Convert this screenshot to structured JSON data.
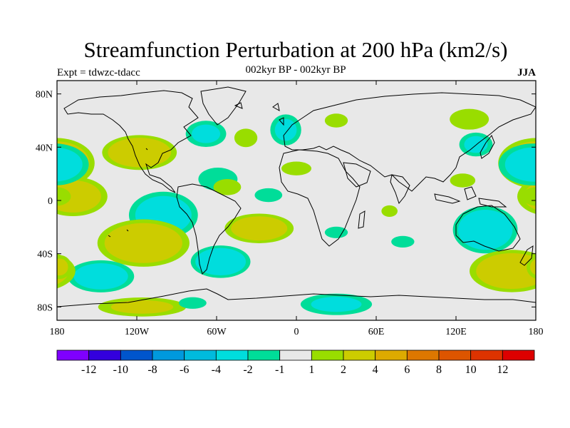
{
  "header": {
    "title": "Streamfunction Perturbation at 200 hPa (km2/s)",
    "subtitle": "002kyr BP - 002kyr BP",
    "left": "Expt = tdwzc-tdacc",
    "right": "JJA"
  },
  "map": {
    "projection": "cylindrical-equidistant",
    "lon_range": [
      -180,
      180
    ],
    "lat_range": [
      -90,
      90
    ],
    "background": "#e8e8e8",
    "yticks": [
      {
        "lat": 80,
        "label": "80N"
      },
      {
        "lat": 40,
        "label": "40N"
      },
      {
        "lat": 0,
        "label": "0"
      },
      {
        "lat": -40,
        "label": "40S"
      },
      {
        "lat": -80,
        "label": "80S"
      }
    ],
    "xticks": [
      {
        "lon": -180,
        "label": "180"
      },
      {
        "lon": -120,
        "label": "120W"
      },
      {
        "lon": -60,
        "label": "60W"
      },
      {
        "lon": 0,
        "label": "0"
      },
      {
        "lon": 60,
        "label": "60E"
      },
      {
        "lon": 120,
        "label": "120E"
      },
      {
        "lon": 180,
        "label": "180"
      }
    ],
    "blobs": [
      {
        "lon": -180,
        "lat": 28,
        "rlon": 30,
        "rlat": 20,
        "peak": 4
      },
      {
        "lon": -118,
        "lat": 36,
        "rlon": 30,
        "rlat": 14,
        "peak": 3.5
      },
      {
        "lon": -168,
        "lat": 3,
        "rlon": 28,
        "rlat": 16,
        "peak": 3
      },
      {
        "lon": -100,
        "lat": -11,
        "rlon": 28,
        "rlat": 19,
        "peak": -3
      },
      {
        "lon": -115,
        "lat": -32,
        "rlon": 37,
        "rlat": 19,
        "peak": 3.5
      },
      {
        "lon": -147,
        "lat": -57,
        "rlon": 27,
        "rlat": 13,
        "peak": -3
      },
      {
        "lon": -57,
        "lat": -46,
        "rlon": 24,
        "rlat": 13,
        "peak": -3.5
      },
      {
        "lon": -28,
        "lat": -21,
        "rlon": 28,
        "rlat": 12,
        "peak": 3
      },
      {
        "lon": -59,
        "lat": 16,
        "rlon": 17,
        "rlat": 10,
        "peak": -1.5
      },
      {
        "lon": -52,
        "lat": 10,
        "rlon": 12,
        "rlat": 7,
        "peak": 1.5
      },
      {
        "lon": -68,
        "lat": 50,
        "rlon": 17,
        "rlat": 11,
        "peak": -2
      },
      {
        "lon": -38,
        "lat": 47,
        "rlon": 10,
        "rlat": 8,
        "peak": 1.5
      },
      {
        "lon": -21,
        "lat": 4,
        "rlon": 12,
        "rlat": 6,
        "peak": -1.5
      },
      {
        "lon": -8,
        "lat": 53,
        "rlon": 13,
        "rlat": 13,
        "peak": -2
      },
      {
        "lon": 30,
        "lat": 60,
        "rlon": 10,
        "rlat": 6,
        "peak": 1.5
      },
      {
        "lon": 0,
        "lat": 24,
        "rlon": 13,
        "rlat": 6,
        "peak": 1.5
      },
      {
        "lon": 70,
        "lat": -8,
        "rlon": 7,
        "rlat": 5,
        "peak": 1.5
      },
      {
        "lon": 30,
        "lat": -24,
        "rlon": 10,
        "rlat": 5,
        "peak": -1.5
      },
      {
        "lon": 80,
        "lat": -31,
        "rlon": 10,
        "rlat": 5,
        "peak": -1.5
      },
      {
        "lon": 130,
        "lat": 61,
        "rlon": 17,
        "rlat": 9,
        "peak": 1.5
      },
      {
        "lon": 135,
        "lat": 42,
        "rlon": 14,
        "rlat": 10,
        "peak": -2
      },
      {
        "lon": 125,
        "lat": 15,
        "rlon": 11,
        "rlat": 6,
        "peak": 1.5
      },
      {
        "lon": 178,
        "lat": 27,
        "rlon": 28,
        "rlat": 17,
        "peak": -3
      },
      {
        "lon": 142,
        "lat": -22,
        "rlon": 26,
        "rlat": 19,
        "peak": -3.5
      },
      {
        "lon": 162,
        "lat": -53,
        "rlon": 34,
        "rlat": 17,
        "peak": 3.5
      },
      {
        "lon": 180,
        "lat": 3,
        "rlon": 12,
        "rlat": 8,
        "peak": 1.5
      },
      {
        "lon": -178,
        "lat": -50,
        "rlon": 10,
        "rlat": 10,
        "peak": 2
      },
      {
        "lon": -116,
        "lat": -80,
        "rlon": 37,
        "rlat": 8,
        "peak": 2
      },
      {
        "lon": -78,
        "lat": -77,
        "rlon": 12,
        "rlat": 5,
        "peak": -1.5
      },
      {
        "lon": 30,
        "lat": -78,
        "rlon": 30,
        "rlat": 9,
        "peak": -2
      }
    ]
  },
  "colorbar": {
    "colors": [
      "#7f00ff",
      "#3300dd",
      "#0055cc",
      "#0099dd",
      "#00bbdd",
      "#00dddd",
      "#00dd99",
      "#e8e8e8",
      "#99dd00",
      "#cccc00",
      "#ddaa00",
      "#dd7700",
      "#dd5500",
      "#dd3300",
      "#dd0000"
    ],
    "labels": [
      "-12",
      "-10",
      "-8",
      "-6",
      "-4",
      "-2",
      "-1",
      "1",
      "2",
      "4",
      "6",
      "8",
      "10",
      "12"
    ],
    "levels": [
      -12,
      -10,
      -8,
      -6,
      -4,
      -2,
      -1,
      1,
      2,
      4,
      6,
      8,
      10,
      12
    ]
  }
}
